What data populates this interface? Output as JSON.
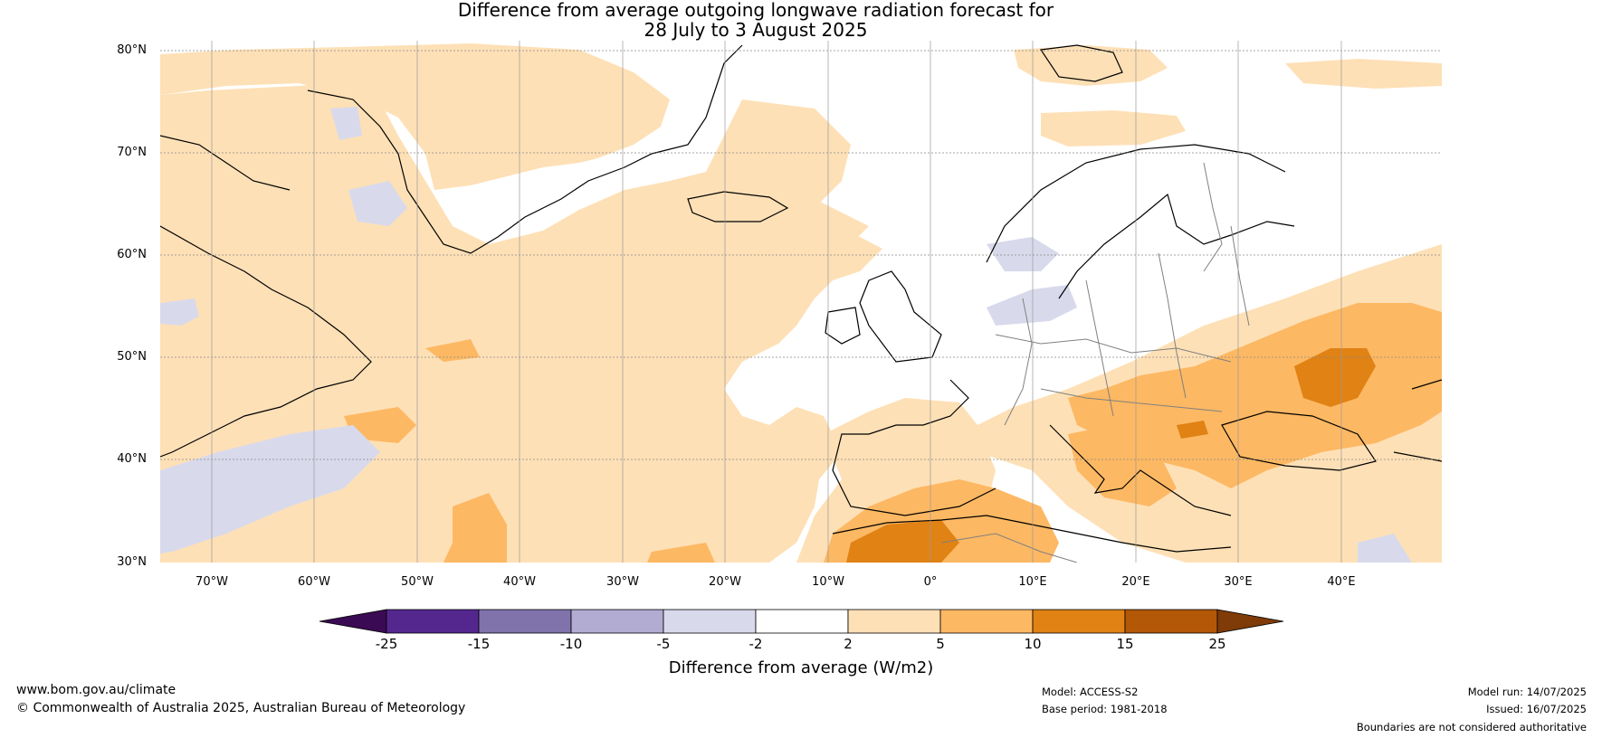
{
  "title": {
    "line1": "Difference from average outgoing longwave radiation forecast for",
    "line2": "28 July to 3 August 2025"
  },
  "map": {
    "lat_labels": [
      "80°N",
      "70°N",
      "60°N",
      "50°N",
      "40°N",
      "30°N"
    ],
    "lon_labels": [
      "70°W",
      "60°W",
      "50°W",
      "40°W",
      "30°W",
      "20°W",
      "10°W",
      "0°",
      "10°E",
      "20°E",
      "30°E",
      "40°E"
    ],
    "colors": {
      "c_le25": "#3b0a54",
      "c_25_15": "#54278f",
      "c_15_10": "#8073ac",
      "c_10_5": "#b2abd2",
      "c_5_2": "#d8daeb",
      "c_2_2": "#ffffff",
      "c_2_5": "#fee0b6",
      "c_5_10": "#fdb863",
      "c_10_15": "#e08214",
      "c_15_25": "#b35806",
      "c_ge25": "#7f3b08",
      "coast": "#000000",
      "border": "#808080"
    }
  },
  "colorbar": {
    "ticks": [
      "-25",
      "-15",
      "-10",
      "-5",
      "-2",
      "2",
      "5",
      "10",
      "15",
      "25"
    ],
    "title": "Difference from average (W/m2)"
  },
  "footer": {
    "website": "www.bom.gov.au/climate",
    "copyright": "© Commonwealth of Australia 2025, Australian Bureau of Meteorology",
    "model": "Model: ACCESS-S2",
    "base_period": "Base period: 1981-2018",
    "model_run": "Model run: 14/07/2025",
    "issued": "Issued: 16/07/2025",
    "disclaimer": "Boundaries are not considered authoritative"
  }
}
